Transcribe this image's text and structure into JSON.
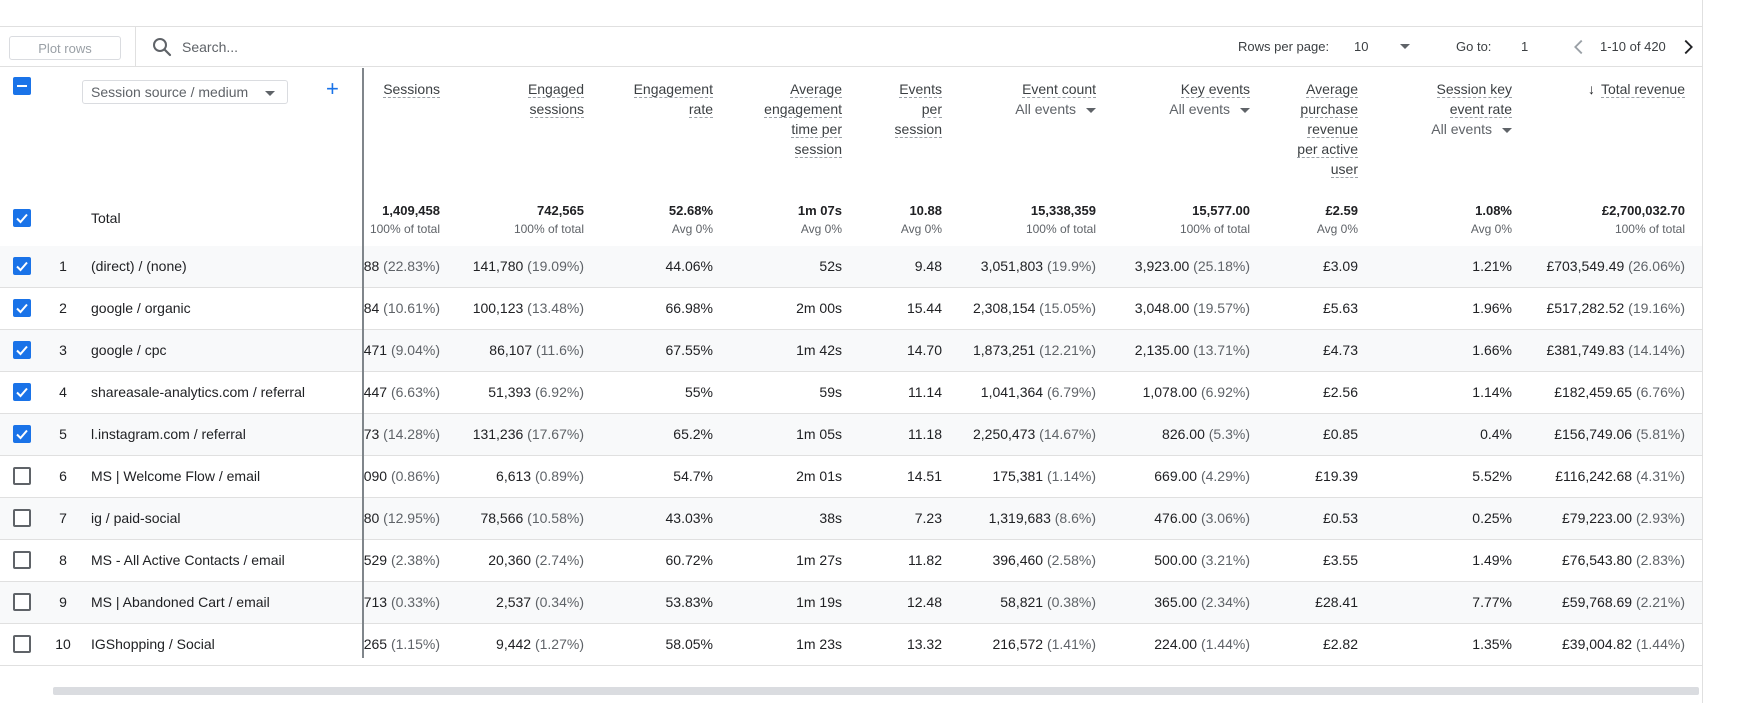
{
  "toolbar": {
    "plot_rows_label": "Plot rows",
    "search_placeholder": "Search...",
    "rows_per_page_label": "Rows per page:",
    "rows_per_page_value": "10",
    "goto_label": "Go to:",
    "goto_value": "1",
    "range_text": "1-10 of 420"
  },
  "header": {
    "dimension_label": "Session source / medium",
    "add_label": "+",
    "total_label": "Total",
    "columns": [
      {
        "lines": [
          "Sessions"
        ],
        "sub": ""
      },
      {
        "lines": [
          "Engaged",
          "sessions"
        ],
        "sub": ""
      },
      {
        "lines": [
          "Engagement",
          "rate"
        ],
        "sub": ""
      },
      {
        "lines": [
          "Average",
          "engagement",
          "time per",
          "session"
        ],
        "sub": ""
      },
      {
        "lines": [
          "Events",
          "per",
          "session"
        ],
        "sub": ""
      },
      {
        "lines": [
          "Event count"
        ],
        "sub": "All events"
      },
      {
        "lines": [
          "Key events"
        ],
        "sub": "All events"
      },
      {
        "lines": [
          "Average",
          "purchase",
          "revenue",
          "per active",
          "user"
        ],
        "sub": ""
      },
      {
        "lines": [
          "Session key",
          "event rate"
        ],
        "sub": "All events"
      },
      {
        "lines": [
          "Total revenue"
        ],
        "sub": "",
        "sorted": "↓"
      }
    ],
    "totals": [
      {
        "value": "1,409,458",
        "sub": "100% of total"
      },
      {
        "value": "742,565",
        "sub": "100% of total"
      },
      {
        "value": "52.68%",
        "sub": "Avg 0%"
      },
      {
        "value": "1m 07s",
        "sub": "Avg 0%"
      },
      {
        "value": "10.88",
        "sub": "Avg 0%"
      },
      {
        "value": "15,338,359",
        "sub": "100% of total"
      },
      {
        "value": "15,577.00",
        "sub": "100% of total"
      },
      {
        "value": "£2.59",
        "sub": "Avg 0%"
      },
      {
        "value": "1.08%",
        "sub": "Avg 0%"
      },
      {
        "value": "£2,700,032.70",
        "sub": "100% of total"
      }
    ]
  },
  "rows": [
    {
      "n": "1",
      "checked": true,
      "dim": "(direct) / (none)",
      "cells": [
        [
          "88",
          " (22.83%)"
        ],
        [
          "141,780",
          " (19.09%)"
        ],
        [
          "44.06%",
          ""
        ],
        [
          "52s",
          ""
        ],
        [
          "9.48",
          ""
        ],
        [
          "3,051,803",
          " (19.9%)"
        ],
        [
          "3,923.00",
          " (25.18%)"
        ],
        [
          "£3.09",
          ""
        ],
        [
          "1.21%",
          ""
        ],
        [
          "£703,549.49",
          " (26.06%)"
        ]
      ]
    },
    {
      "n": "2",
      "checked": true,
      "dim": "google / organic",
      "cells": [
        [
          "84",
          " (10.61%)"
        ],
        [
          "100,123",
          " (13.48%)"
        ],
        [
          "66.98%",
          ""
        ],
        [
          "2m 00s",
          ""
        ],
        [
          "15.44",
          ""
        ],
        [
          "2,308,154",
          " (15.05%)"
        ],
        [
          "3,048.00",
          " (19.57%)"
        ],
        [
          "£5.63",
          ""
        ],
        [
          "1.96%",
          ""
        ],
        [
          "£517,282.52",
          " (19.16%)"
        ]
      ]
    },
    {
      "n": "3",
      "checked": true,
      "dim": "google / cpc",
      "cells": [
        [
          "471",
          " (9.04%)"
        ],
        [
          "86,107",
          " (11.6%)"
        ],
        [
          "67.55%",
          ""
        ],
        [
          "1m 42s",
          ""
        ],
        [
          "14.70",
          ""
        ],
        [
          "1,873,251",
          " (12.21%)"
        ],
        [
          "2,135.00",
          " (13.71%)"
        ],
        [
          "£4.73",
          ""
        ],
        [
          "1.66%",
          ""
        ],
        [
          "£381,749.83",
          " (14.14%)"
        ]
      ]
    },
    {
      "n": "4",
      "checked": true,
      "dim": "shareasale-analytics.com / referral",
      "cells": [
        [
          "447",
          " (6.63%)"
        ],
        [
          "51,393",
          " (6.92%)"
        ],
        [
          "55%",
          ""
        ],
        [
          "59s",
          ""
        ],
        [
          "11.14",
          ""
        ],
        [
          "1,041,364",
          " (6.79%)"
        ],
        [
          "1,078.00",
          " (6.92%)"
        ],
        [
          "£2.56",
          ""
        ],
        [
          "1.14%",
          ""
        ],
        [
          "£182,459.65",
          " (6.76%)"
        ]
      ]
    },
    {
      "n": "5",
      "checked": true,
      "dim": "l.instagram.com / referral",
      "cells": [
        [
          "73",
          " (14.28%)"
        ],
        [
          "131,236",
          " (17.67%)"
        ],
        [
          "65.2%",
          ""
        ],
        [
          "1m 05s",
          ""
        ],
        [
          "11.18",
          ""
        ],
        [
          "2,250,473",
          " (14.67%)"
        ],
        [
          "826.00",
          " (5.3%)"
        ],
        [
          "£0.85",
          ""
        ],
        [
          "0.4%",
          ""
        ],
        [
          "£156,749.06",
          " (5.81%)"
        ]
      ]
    },
    {
      "n": "6",
      "checked": false,
      "dim": "MS | Welcome Flow / email",
      "cells": [
        [
          "090",
          " (0.86%)"
        ],
        [
          "6,613",
          " (0.89%)"
        ],
        [
          "54.7%",
          ""
        ],
        [
          "2m 01s",
          ""
        ],
        [
          "14.51",
          ""
        ],
        [
          "175,381",
          " (1.14%)"
        ],
        [
          "669.00",
          " (4.29%)"
        ],
        [
          "£19.39",
          ""
        ],
        [
          "5.52%",
          ""
        ],
        [
          "£116,242.68",
          " (4.31%)"
        ]
      ]
    },
    {
      "n": "7",
      "checked": false,
      "dim": "ig / paid-social",
      "cells": [
        [
          "80",
          " (12.95%)"
        ],
        [
          "78,566",
          " (10.58%)"
        ],
        [
          "43.03%",
          ""
        ],
        [
          "38s",
          ""
        ],
        [
          "7.23",
          ""
        ],
        [
          "1,319,683",
          " (8.6%)"
        ],
        [
          "476.00",
          " (3.06%)"
        ],
        [
          "£0.53",
          ""
        ],
        [
          "0.25%",
          ""
        ],
        [
          "£79,223.00",
          " (2.93%)"
        ]
      ]
    },
    {
      "n": "8",
      "checked": false,
      "dim": "MS - All Active Contacts / email",
      "cells": [
        [
          "529",
          " (2.38%)"
        ],
        [
          "20,360",
          " (2.74%)"
        ],
        [
          "60.72%",
          ""
        ],
        [
          "1m 27s",
          ""
        ],
        [
          "11.82",
          ""
        ],
        [
          "396,460",
          " (2.58%)"
        ],
        [
          "500.00",
          " (3.21%)"
        ],
        [
          "£3.55",
          ""
        ],
        [
          "1.49%",
          ""
        ],
        [
          "£76,543.80",
          " (2.83%)"
        ]
      ]
    },
    {
      "n": "9",
      "checked": false,
      "dim": "MS | Abandoned Cart / email",
      "cells": [
        [
          "713",
          " (0.33%)"
        ],
        [
          "2,537",
          " (0.34%)"
        ],
        [
          "53.83%",
          ""
        ],
        [
          "1m 19s",
          ""
        ],
        [
          "12.48",
          ""
        ],
        [
          "58,821",
          " (0.38%)"
        ],
        [
          "365.00",
          " (2.34%)"
        ],
        [
          "£28.41",
          ""
        ],
        [
          "7.77%",
          ""
        ],
        [
          "£59,768.69",
          " (2.21%)"
        ]
      ]
    },
    {
      "n": "10",
      "checked": false,
      "dim": "IGShopping / Social",
      "cells": [
        [
          "265",
          " (1.15%)"
        ],
        [
          "9,442",
          " (1.27%)"
        ],
        [
          "58.05%",
          ""
        ],
        [
          "1m 23s",
          ""
        ],
        [
          "13.32",
          ""
        ],
        [
          "216,572",
          " (1.41%)"
        ],
        [
          "224.00",
          " (1.44%)"
        ],
        [
          "£2.82",
          ""
        ],
        [
          "1.35%",
          ""
        ],
        [
          "£39,004.82",
          " (1.44%)"
        ]
      ]
    }
  ],
  "colors": {
    "accent": "#1a73e8",
    "text": "#202124",
    "muted": "#5f6368",
    "alt_row": "#f8f9fa"
  },
  "icons": {
    "search": "search-icon",
    "prev": "chevron-left-icon",
    "next": "chevron-right-icon",
    "sort": "arrow-down-icon"
  }
}
